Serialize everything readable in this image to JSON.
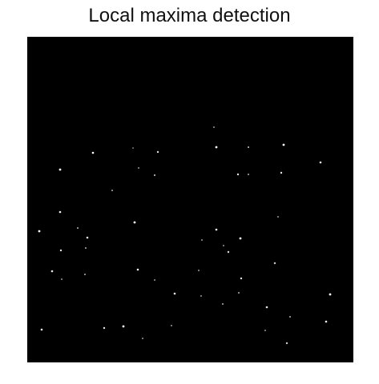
{
  "figure": {
    "title": "Local maxima detection"
  },
  "image": {
    "background_color": "#000000",
    "spot_color": "#ffffff"
  }
}
